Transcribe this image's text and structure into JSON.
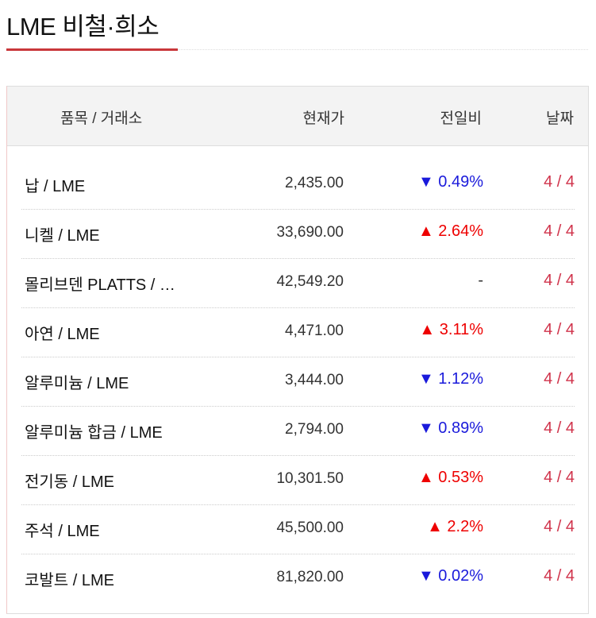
{
  "title": "LME 비철·희소",
  "header": {
    "item": "품목 / 거래소",
    "price": "현재가",
    "change": "전일비",
    "date": "날짜"
  },
  "colors": {
    "accent": "#c9373b",
    "up": "#e00000",
    "down": "#1a1adb",
    "date": "#d0334b"
  },
  "rows": [
    {
      "name": "납 / LME",
      "price": "2,435.00",
      "change": "▼ 0.49%",
      "dir": "down",
      "date": "4 / 4"
    },
    {
      "name": "니켈 / LME",
      "price": "33,690.00",
      "change": "▲ 2.64%",
      "dir": "up",
      "date": "4 / 4"
    },
    {
      "name": "몰리브덴 PLATTS / …",
      "price": "42,549.20",
      "change": "-",
      "dir": "flat",
      "date": "4 / 4"
    },
    {
      "name": "아연 / LME",
      "price": "4,471.00",
      "change": "▲ 3.11%",
      "dir": "up",
      "date": "4 / 4"
    },
    {
      "name": "알루미늄 / LME",
      "price": "3,444.00",
      "change": "▼ 1.12%",
      "dir": "down",
      "date": "4 / 4"
    },
    {
      "name": "알루미늄 합금 / LME",
      "price": "2,794.00",
      "change": "▼ 0.89%",
      "dir": "down",
      "date": "4 / 4"
    },
    {
      "name": "전기동 / LME",
      "price": "10,301.50",
      "change": "▲ 0.53%",
      "dir": "up",
      "date": "4 / 4"
    },
    {
      "name": "주석 / LME",
      "price": "45,500.00",
      "change": "▲ 2.2%",
      "dir": "up",
      "date": "4 / 4"
    },
    {
      "name": "코발트 / LME",
      "price": "81,820.00",
      "change": "▼ 0.02%",
      "dir": "down",
      "date": "4 / 4"
    }
  ]
}
